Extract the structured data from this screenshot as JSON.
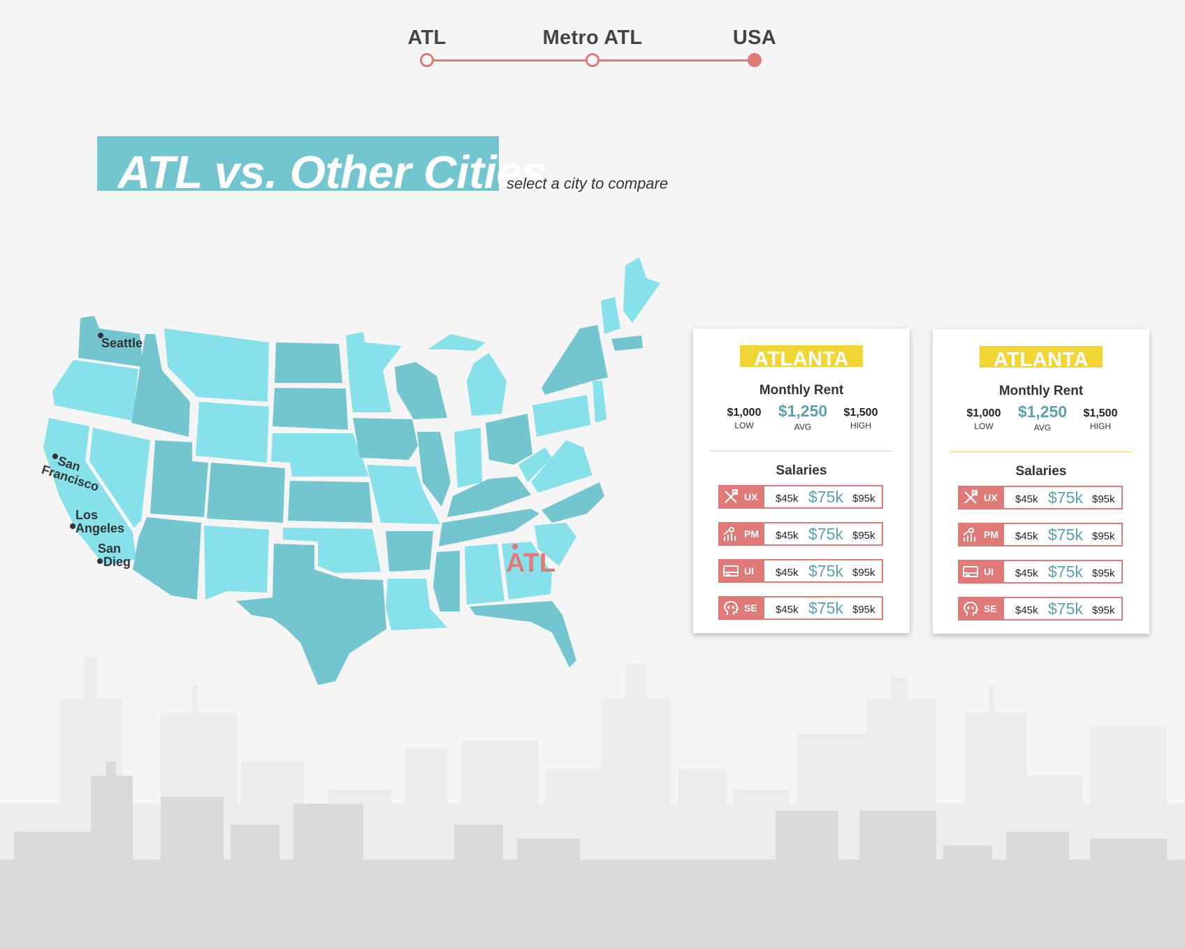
{
  "timeline": {
    "items": [
      {
        "label": "ATL",
        "active": false
      },
      {
        "label": "Metro ATL",
        "active": false
      },
      {
        "label": "USA",
        "active": true
      }
    ]
  },
  "header": {
    "title": "ATL vs. Other Cities",
    "subtitle": "select a city to compare"
  },
  "map": {
    "cities": {
      "seattle": "Seattle",
      "san_francisco_1": "San",
      "san_francisco_2": "Francisco",
      "los_angeles_1": "Los",
      "los_angeles_2": "Angeles",
      "san_diego_1": "San",
      "san_diego_2": "Diego"
    },
    "marker": "ATL"
  },
  "cards": [
    {
      "city": "ATLANTA",
      "rent_title": "Monthly Rent",
      "rent": {
        "low": "$1,000",
        "low_label": "LOW",
        "avg": "$1,250",
        "avg_label": "AVG",
        "high": "$1,500",
        "high_label": "HIGH"
      },
      "salaries_title": "Salaries",
      "salaries": [
        {
          "code": "UX",
          "icon": "design-tools-icon",
          "low": "$45k",
          "avg": "$75k",
          "high": "$95k"
        },
        {
          "code": "PM",
          "icon": "growth-chart-person-icon",
          "low": "$45k",
          "avg": "$75k",
          "high": "$95k"
        },
        {
          "code": "UI",
          "icon": "browser-window-icon",
          "low": "$45k",
          "avg": "$75k",
          "high": "$95k"
        },
        {
          "code": "SE",
          "icon": "code-head-icon",
          "low": "$45k",
          "avg": "$75k",
          "high": "$95k"
        }
      ]
    },
    {
      "city": "ATLANTA",
      "rent_title": "Monthly Rent",
      "rent": {
        "low": "$1,000",
        "low_label": "LOW",
        "avg": "$1,250",
        "avg_label": "AVG",
        "high": "$1,500",
        "high_label": "HIGH"
      },
      "salaries_title": "Salaries",
      "salaries": [
        {
          "code": "UX",
          "icon": "design-tools-icon",
          "low": "$45k",
          "avg": "$75k",
          "high": "$95k"
        },
        {
          "code": "PM",
          "icon": "growth-chart-person-icon",
          "low": "$45k",
          "avg": "$75k",
          "high": "$95k"
        },
        {
          "code": "UI",
          "icon": "browser-window-icon",
          "low": "$45k",
          "avg": "$75k",
          "high": "$95k"
        },
        {
          "code": "SE",
          "icon": "code-head-icon",
          "low": "$45k",
          "avg": "$75k",
          "high": "$95k"
        }
      ]
    }
  ],
  "colors": {
    "accent": "#e07a78",
    "teal_dark": "#73c6cf",
    "teal_light": "#86e1ea",
    "yellow": "#f0d535",
    "avg_text": "#5aa3ad",
    "background": "#f5f5f5"
  }
}
